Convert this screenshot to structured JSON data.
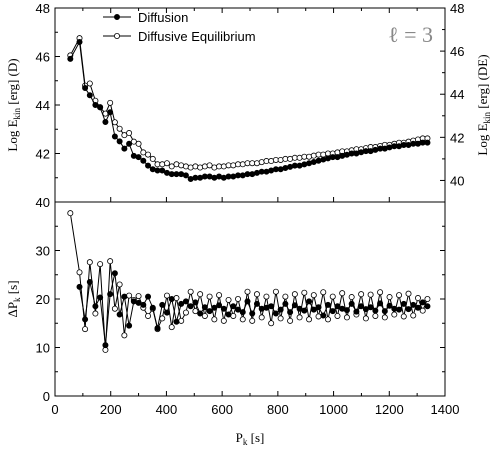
{
  "chart_data": [
    {
      "type": "line",
      "panel": "top",
      "ylabel_left": "Log E",
      "ylabel_left_sub": "kin",
      "ylabel_left_suffix": " [erg] (D)",
      "ylabel_right": "Log E",
      "ylabel_right_sub": "kin",
      "ylabel_right_suffix": " [erg] (DE)",
      "ylim_left": [
        40,
        48
      ],
      "yticks_left": [
        "40",
        "42",
        "44",
        "46",
        "48"
      ],
      "ylim_right": [
        39,
        48
      ],
      "yticks_right": [
        "40",
        "42",
        "44",
        "46",
        "48"
      ],
      "annotation": "ℓ = 3",
      "legend": {
        "placement": "top-center",
        "entries": [
          "Diffusion",
          "Diffusive Equilibrium"
        ]
      },
      "series": [
        {
          "name": "Diffusion",
          "marker": "filled-circle",
          "axis": "left",
          "x": [
            55,
            88,
            108,
            125,
            145,
            162,
            181,
            198,
            215,
            232,
            249,
            266,
            283,
            300,
            317,
            334,
            351,
            368,
            385,
            402,
            419,
            436,
            453,
            470,
            487,
            504,
            521,
            538,
            555,
            572,
            589,
            606,
            623,
            640,
            657,
            674,
            691,
            708,
            725,
            742,
            759,
            776,
            793,
            810,
            827,
            844,
            861,
            878,
            895,
            912,
            929,
            946,
            963,
            980,
            997,
            1014,
            1031,
            1048,
            1065,
            1082,
            1099,
            1116,
            1133,
            1150,
            1167,
            1184,
            1201,
            1218,
            1235,
            1252,
            1269,
            1286,
            1303,
            1320,
            1337
          ],
          "y": [
            45.9,
            46.6,
            44.7,
            44.4,
            44.0,
            43.9,
            43.3,
            43.7,
            42.7,
            42.5,
            42.2,
            42.4,
            41.9,
            41.85,
            41.7,
            41.5,
            41.35,
            41.3,
            41.3,
            41.2,
            41.15,
            41.15,
            41.15,
            41.1,
            40.95,
            41.0,
            41.0,
            41.05,
            41.05,
            41.0,
            41.05,
            41.0,
            41.05,
            41.05,
            41.1,
            41.1,
            41.15,
            41.15,
            41.2,
            41.25,
            41.25,
            41.3,
            41.35,
            41.35,
            41.4,
            41.45,
            41.5,
            41.5,
            41.55,
            41.6,
            41.65,
            41.7,
            41.75,
            41.8,
            41.85,
            41.85,
            41.9,
            41.95,
            42.0,
            42.0,
            42.05,
            42.1,
            42.1,
            42.15,
            42.2,
            42.2,
            42.25,
            42.3,
            42.3,
            42.35,
            42.35,
            42.4,
            42.4,
            42.45,
            42.45
          ]
        },
        {
          "name": "Diffusive Equilibrium",
          "marker": "open-circle",
          "axis": "right",
          "x": [
            55,
            88,
            108,
            125,
            145,
            162,
            181,
            198,
            215,
            232,
            249,
            266,
            283,
            300,
            317,
            334,
            351,
            368,
            385,
            402,
            419,
            436,
            453,
            470,
            487,
            504,
            521,
            538,
            555,
            572,
            589,
            606,
            623,
            640,
            657,
            674,
            691,
            708,
            725,
            742,
            759,
            776,
            793,
            810,
            827,
            844,
            861,
            878,
            895,
            912,
            929,
            946,
            963,
            980,
            997,
            1014,
            1031,
            1048,
            1065,
            1082,
            1099,
            1116,
            1133,
            1150,
            1167,
            1184,
            1201,
            1218,
            1235,
            1252,
            1269,
            1286,
            1303,
            1320,
            1337
          ],
          "y": [
            45.8,
            46.6,
            44.4,
            44.5,
            43.7,
            43.4,
            43.1,
            43.6,
            42.7,
            42.4,
            42.1,
            42.2,
            41.8,
            41.7,
            41.3,
            41.2,
            41.0,
            40.75,
            40.75,
            40.8,
            40.65,
            40.75,
            40.7,
            40.65,
            40.6,
            40.65,
            40.6,
            40.65,
            40.7,
            40.6,
            40.65,
            40.65,
            40.7,
            40.7,
            40.75,
            40.75,
            40.8,
            40.8,
            40.8,
            40.85,
            40.9,
            40.9,
            40.95,
            40.95,
            41.0,
            41.0,
            41.05,
            41.05,
            41.1,
            41.1,
            41.15,
            41.2,
            41.2,
            41.25,
            41.25,
            41.3,
            41.35,
            41.35,
            41.4,
            41.45,
            41.45,
            41.5,
            41.55,
            41.55,
            41.6,
            41.65,
            41.65,
            41.7,
            41.75,
            41.75,
            41.8,
            41.85,
            41.9,
            41.95,
            41.95
          ]
        }
      ]
    },
    {
      "type": "line",
      "panel": "bottom",
      "xlabel": "P",
      "xlabel_sub": "k",
      "xlabel_suffix": " [s]",
      "ylabel": "ΔP",
      "ylabel_sub": "k",
      "ylabel_suffix": " [s]",
      "xlim": [
        0,
        1400
      ],
      "xticks": [
        "0",
        "200",
        "400",
        "600",
        "800",
        "1000",
        "1200",
        "1400"
      ],
      "ylim": [
        0,
        40
      ],
      "yticks": [
        "0",
        "10",
        "20",
        "30",
        "40"
      ],
      "series": [
        {
          "name": "Diffusion",
          "marker": "filled-circle",
          "x": [
            88,
            108,
            125,
            145,
            162,
            181,
            198,
            215,
            232,
            249,
            266,
            283,
            300,
            317,
            334,
            351,
            368,
            385,
            402,
            419,
            436,
            453,
            470,
            487,
            504,
            521,
            538,
            555,
            572,
            589,
            606,
            623,
            640,
            657,
            674,
            691,
            708,
            725,
            742,
            759,
            776,
            793,
            810,
            827,
            844,
            861,
            878,
            895,
            912,
            929,
            946,
            963,
            980,
            997,
            1014,
            1031,
            1048,
            1065,
            1082,
            1099,
            1116,
            1133,
            1150,
            1167,
            1184,
            1201,
            1218,
            1235,
            1252,
            1269,
            1286,
            1303,
            1320,
            1337
          ],
          "y": [
            22.5,
            15.8,
            23.5,
            18.5,
            20.3,
            10.5,
            21.0,
            25.3,
            16.8,
            20.5,
            14.5,
            19.5,
            19.2,
            18.8,
            20.5,
            18.2,
            14.0,
            18.8,
            17.2,
            20.0,
            15.3,
            19.0,
            19.5,
            18.5,
            19.3,
            17.0,
            18.3,
            17.5,
            18.2,
            18.7,
            18.0,
            16.8,
            18.5,
            17.8,
            17.3,
            19.5,
            17.0,
            19.0,
            18.0,
            18.2,
            18.5,
            17.0,
            17.8,
            19.0,
            17.3,
            18.7,
            18.0,
            17.6,
            19.5,
            17.8,
            18.3,
            16.6,
            18.8,
            17.5,
            18.5,
            18.0,
            17.7,
            19.0,
            17.4,
            18.5,
            17.9,
            18.3,
            17.6,
            19.1,
            17.5,
            18.6,
            18.0,
            17.8,
            19.0,
            17.9,
            18.8,
            18.2,
            19.3,
            18.5
          ]
        },
        {
          "name": "Diffusive Equilibrium",
          "marker": "open-circle",
          "x": [
            55,
            88,
            108,
            125,
            145,
            162,
            181,
            198,
            215,
            232,
            249,
            266,
            283,
            300,
            317,
            334,
            351,
            368,
            385,
            402,
            419,
            436,
            453,
            470,
            487,
            504,
            521,
            538,
            555,
            572,
            589,
            606,
            623,
            640,
            657,
            674,
            691,
            708,
            725,
            742,
            759,
            776,
            793,
            810,
            827,
            844,
            861,
            878,
            895,
            912,
            929,
            946,
            963,
            980,
            997,
            1014,
            1031,
            1048,
            1065,
            1082,
            1099,
            1116,
            1133,
            1150,
            1167,
            1184,
            1201,
            1218,
            1235,
            1252,
            1269,
            1286,
            1303,
            1320,
            1337
          ],
          "y": [
            37.7,
            25.5,
            13.8,
            27.6,
            17.0,
            27.2,
            9.5,
            27.8,
            18.0,
            23.0,
            12.5,
            20.7,
            19.8,
            20.6,
            18.2,
            16.5,
            18.0,
            13.8,
            16.0,
            20.7,
            14.2,
            20.2,
            15.5,
            17.2,
            21.5,
            17.5,
            21.0,
            16.5,
            20.5,
            15.8,
            20.8,
            15.5,
            19.8,
            16.5,
            20.0,
            15.8,
            21.5,
            15.5,
            21.0,
            16.2,
            20.5,
            15.0,
            21.5,
            16.0,
            20.5,
            15.5,
            21.0,
            16.2,
            21.3,
            15.8,
            20.8,
            16.4,
            21.4,
            15.8,
            20.5,
            16.5,
            21.2,
            16.2,
            20.4,
            16.8,
            21.0,
            16.0,
            20.9,
            16.5,
            21.4,
            16.2,
            20.4,
            16.8,
            20.8,
            16.4,
            21.1,
            16.6,
            20.2,
            17.6,
            20.0
          ]
        }
      ]
    }
  ]
}
